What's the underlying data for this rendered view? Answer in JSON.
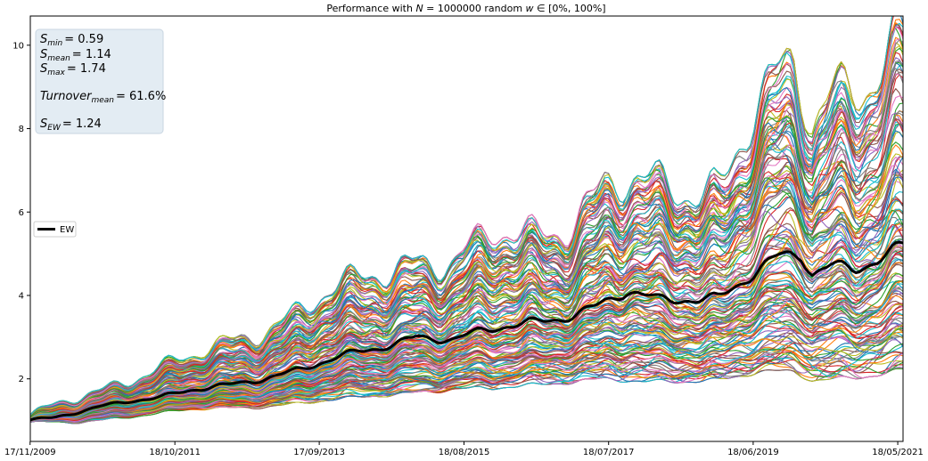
{
  "chart_data": {
    "type": "line",
    "title": {
      "prefix": "Performance with ",
      "n_symbol": "N",
      "n_rest": " = 1000000 random ",
      "w_symbol": "w",
      "w_rest": " ∈ [0%, 100%]"
    },
    "xlabel": "",
    "ylabel": "",
    "x_ticks": [
      "17/11/2009",
      "18/10/2011",
      "17/09/2013",
      "18/08/2015",
      "18/07/2017",
      "18/06/2019",
      "18/05/2021"
    ],
    "x_range": [
      "17/11/2009",
      "14/06/2021"
    ],
    "y_ticks": [
      2,
      4,
      6,
      8,
      10
    ],
    "y_range": [
      0.5,
      10.7
    ],
    "grid": false,
    "legend": {
      "placement": "center-left",
      "entries": [
        "EW"
      ]
    },
    "stats_box": {
      "s_min": {
        "label": "S",
        "sub": "min",
        "value": "= 0.59"
      },
      "s_mean": {
        "label": "S",
        "sub": "mean",
        "value": "= 1.14"
      },
      "s_max": {
        "label": "S",
        "sub": "max",
        "value": "= 1.74"
      },
      "turnover": {
        "label": "Turnover",
        "sub": "mean",
        "value": "= 61.6%"
      },
      "s_ew": {
        "label": "S",
        "sub": "EW",
        "value": "= 1.24"
      }
    },
    "ew_series": {
      "name": "EW",
      "color": "#000000",
      "x_years": [
        2009.88,
        2010.2,
        2010.5,
        2010.8,
        2011.2,
        2011.6,
        2012.0,
        2012.5,
        2013.0,
        2013.5,
        2014.0,
        2014.5,
        2015.0,
        2015.5,
        2016.0,
        2016.5,
        2017.0,
        2017.4,
        2017.8,
        2018.2,
        2018.6,
        2019.0,
        2019.4,
        2019.8,
        2020.1,
        2020.25,
        2020.5,
        2020.8,
        2021.2,
        2021.45
      ],
      "values": [
        1.0,
        1.05,
        1.2,
        1.35,
        1.5,
        1.55,
        1.7,
        1.85,
        2.05,
        2.25,
        2.5,
        2.75,
        3.05,
        2.95,
        3.15,
        3.35,
        3.55,
        3.75,
        4.05,
        3.85,
        3.95,
        4.0,
        4.45,
        4.85,
        4.9,
        4.5,
        4.75,
        4.7,
        5.0,
        5.15
      ]
    },
    "envelope": {
      "x_years": [
        2009.88,
        2010.5,
        2011.2,
        2012.0,
        2013.0,
        2014.0,
        2015.0,
        2015.5,
        2016.0,
        2016.5,
        2017.0,
        2017.5,
        2018.0,
        2018.5,
        2019.0,
        2019.5,
        2020.0,
        2020.25,
        2020.5,
        2021.0,
        2021.45
      ],
      "upper": [
        1.1,
        1.55,
        2.05,
        2.45,
        3.3,
        4.1,
        5.0,
        4.8,
        5.3,
        5.5,
        5.9,
        6.6,
        6.5,
        6.6,
        6.8,
        8.5,
        9.2,
        8.0,
        9.0,
        9.5,
        10.3
      ],
      "lower": [
        0.95,
        0.95,
        1.1,
        1.25,
        1.35,
        1.5,
        1.7,
        1.75,
        1.75,
        1.85,
        1.95,
        2.0,
        1.9,
        1.95,
        2.0,
        2.15,
        2.15,
        1.95,
        2.0,
        2.1,
        2.2
      ]
    }
  }
}
